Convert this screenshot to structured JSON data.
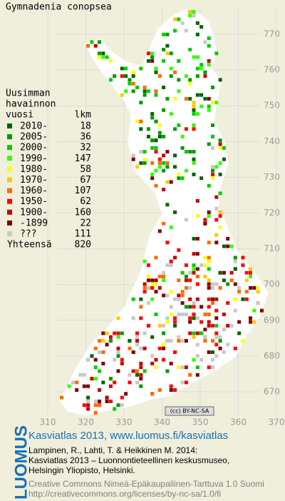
{
  "title": "Gymnadenia conopsea",
  "legend": {
    "heading": [
      "Uusimman",
      "havainnon",
      "vuosi"
    ],
    "count_heading": "lkm",
    "rows": [
      {
        "label": "2010-",
        "count": "18",
        "color": "#006400"
      },
      {
        "label": "2005-",
        "count": "36",
        "color": "#009a00"
      },
      {
        "label": "2000-",
        "count": "32",
        "color": "#00cc00"
      },
      {
        "label": "1990-",
        "count": "147",
        "color": "#33ff00"
      },
      {
        "label": "1980-",
        "count": "58",
        "color": "#ffff00"
      },
      {
        "label": "1970-",
        "count": "67",
        "color": "#ffc800"
      },
      {
        "label": "1960-",
        "count": "107",
        "color": "#ff6a00"
      },
      {
        "label": "1950-",
        "count": "62",
        "color": "#ff0000"
      },
      {
        "label": "1900-",
        "count": "160",
        "color": "#c80000"
      },
      {
        "label": "-1899",
        "count": "22",
        "color": "#800000"
      },
      {
        "label": "???",
        "count": "111",
        "color": "#c8c8c8"
      }
    ],
    "total_label": "Yhteensä",
    "total": "820"
  },
  "grid": {
    "y_labels": [
      "770",
      "760",
      "750",
      "740",
      "730",
      "720",
      "710",
      "700",
      "690",
      "680",
      "670"
    ],
    "x_labels": [
      "310",
      "320",
      "330",
      "340",
      "350",
      "360",
      "370"
    ]
  },
  "license_badge": "(cc) BY-NC-SA",
  "footer": {
    "logo": "LUOMUS",
    "link": "Kasviatlas 2013, www.luomus.fi/kasviatlas",
    "citation": [
      "Lampinen, R., Lahti, T. & Heikkinen M. 2014:",
      "Kasviatlas 2013 – Luonnontieteellinen keskusmuseo,",
      "Helsingin Yliopisto, Helsinki."
    ],
    "license": [
      "Creative Commons Nimeä-Epäkaupallinen-Tarttuva 1.0 Suomi",
      "http://creativecommons.org/licenses/by-nc-sa/1.0/fi"
    ]
  }
}
